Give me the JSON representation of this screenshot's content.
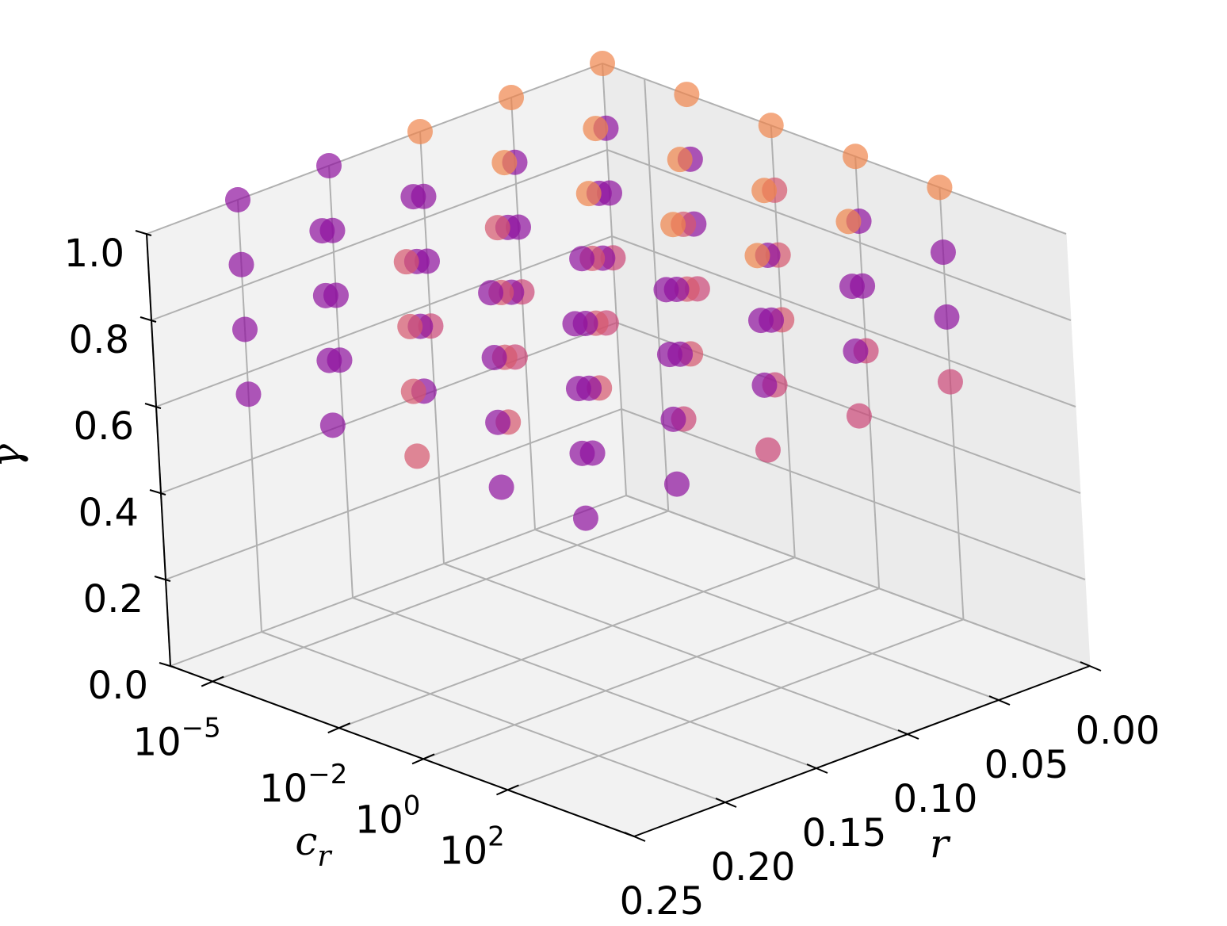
{
  "chart_data": {
    "type": "scatter3d",
    "xlabel": "c",
    "xlabel_sub": "r",
    "ylabel": "r",
    "zlabel": "γ",
    "xscale": "log",
    "colormap": "plasma",
    "alpha": 0.7,
    "xlim": [
      1e-06,
      100000
    ],
    "ylim": [
      0,
      0.25
    ],
    "zlim": [
      0,
      1
    ],
    "xticks": [
      {
        "value": 1e-05,
        "label": "10",
        "exponent": "−5"
      },
      {
        "value": 0.01,
        "label": "10",
        "exponent": "−2"
      },
      {
        "value": 1,
        "label": "10",
        "exponent": "0"
      },
      {
        "value": 100,
        "label": "10",
        "exponent": "2"
      }
    ],
    "yticks": [
      {
        "value": 0,
        "label": "0.00"
      },
      0.05,
      {
        "value": 0.1,
        "label": "0.10"
      },
      0.15,
      {
        "value": 0.2,
        "label": "0.20"
      },
      0.25
    ],
    "zticks": [
      {
        "value": 0,
        "label": "0.0"
      },
      0.2,
      0.4,
      0.6,
      0.8,
      {
        "value": 1,
        "label": "1.0"
      }
    ],
    "grid": true,
    "x": [
      1e-06,
      1e-06,
      1e-06,
      1e-06,
      1e-06,
      1e-06,
      1e-06,
      1e-06,
      1e-06,
      1e-06,
      1e-06,
      1e-06,
      1e-06,
      1e-06,
      1e-06,
      1e-06,
      1e-06,
      1e-06,
      1e-06,
      1e-06,
      0.0001,
      0.0001,
      0.0001,
      0.0001,
      0.0001,
      0.0001,
      0.0001,
      0.0001,
      0.0001,
      0.0001,
      0.0001,
      0.0001,
      0.0001,
      0.0001,
      0.0001,
      0.0001,
      0.0001,
      0.0001,
      0.0001,
      0.0001,
      0.01,
      0.01,
      0.01,
      0.01,
      0.01,
      0.01,
      0.01,
      0.01,
      0.01,
      0.01,
      0.01,
      0.01,
      0.01,
      0.01,
      0.01,
      0.01,
      0.01,
      0.01,
      0.01,
      0.01,
      1,
      1,
      1,
      1,
      1,
      1,
      1,
      1,
      1,
      1,
      1,
      1,
      1,
      1,
      1,
      1,
      1,
      1,
      1,
      1,
      100,
      100,
      100,
      100,
      100,
      100,
      100,
      100,
      100,
      100,
      100,
      100,
      100,
      100,
      100,
      100,
      100,
      100,
      100,
      100
    ],
    "y": [
      0,
      0,
      0,
      0,
      0.05,
      0.05,
      0.05,
      0.05,
      0.1,
      0.1,
      0.1,
      0.1,
      0.15,
      0.15,
      0.15,
      0.15,
      0.2,
      0.2,
      0.2,
      0.2,
      0,
      0,
      0,
      0,
      0.05,
      0.05,
      0.05,
      0.05,
      0.1,
      0.1,
      0.1,
      0.1,
      0.15,
      0.15,
      0.15,
      0.15,
      0.2,
      0.2,
      0.2,
      0.2,
      0,
      0,
      0,
      0,
      0.05,
      0.05,
      0.05,
      0.05,
      0.1,
      0.1,
      0.1,
      0.1,
      0.15,
      0.15,
      0.15,
      0.15,
      0.2,
      0.2,
      0.2,
      0.2,
      0,
      0,
      0,
      0,
      0.05,
      0.05,
      0.05,
      0.05,
      0.1,
      0.1,
      0.1,
      0.1,
      0.15,
      0.15,
      0.15,
      0.15,
      0.2,
      0.2,
      0.2,
      0.2,
      0,
      0,
      0,
      0,
      0.05,
      0.05,
      0.05,
      0.05,
      0.1,
      0.1,
      0.1,
      0.1,
      0.15,
      0.15,
      0.15,
      0.15,
      0.2,
      0.2,
      0.2,
      0.2
    ],
    "z": [
      0.55,
      0.7,
      0.85,
      1,
      0.55,
      0.7,
      0.85,
      1,
      0.55,
      0.7,
      0.85,
      1,
      0.55,
      0.7,
      0.85,
      1,
      0.55,
      0.7,
      0.85,
      1,
      0.55,
      0.7,
      0.85,
      1,
      0.55,
      0.7,
      0.85,
      1,
      0.55,
      0.7,
      0.85,
      1,
      0.55,
      0.7,
      0.85,
      1,
      0.55,
      0.7,
      0.85,
      1,
      0.55,
      0.7,
      0.85,
      1,
      0.55,
      0.7,
      0.85,
      1,
      0.55,
      0.7,
      0.85,
      1,
      0.55,
      0.7,
      0.85,
      1,
      0.55,
      0.7,
      0.85,
      1,
      0.55,
      0.7,
      0.85,
      1,
      0.55,
      0.7,
      0.85,
      1,
      0.55,
      0.7,
      0.85,
      1,
      0.55,
      0.7,
      0.85,
      1,
      0.55,
      0.7,
      0.85,
      1,
      0.55,
      0.7,
      0.85,
      1,
      0.55,
      0.7,
      0.85,
      1,
      0.55,
      0.7,
      0.85,
      1,
      0.55,
      0.7,
      0.85,
      1,
      0.55,
      0.7,
      0.85,
      1
    ],
    "color_values": [
      0.5,
      0.3,
      0.3,
      0.7,
      0.5,
      0.3,
      0.3,
      0.7,
      0.5,
      0.3,
      0.3,
      0.7,
      0.3,
      0.3,
      0.3,
      0.3,
      0.3,
      0.3,
      0.3,
      0.3,
      0.5,
      0.3,
      0.3,
      0.7,
      0.5,
      0.3,
      0.3,
      0.7,
      0.5,
      0.3,
      0.3,
      0.7,
      0.3,
      0.3,
      0.3,
      0.3,
      0.3,
      0.3,
      0.3,
      0.3,
      0.55,
      0.55,
      0.55,
      0.7,
      0.55,
      0.55,
      0.55,
      0.7,
      0.55,
      0.55,
      0.55,
      0.7,
      0.55,
      0.55,
      0.55,
      0.55,
      0.55,
      0.55,
      0.55,
      0.55,
      0.5,
      0.3,
      0.3,
      0.7,
      0.5,
      0.3,
      0.3,
      0.7,
      0.5,
      0.3,
      0.3,
      0.7,
      0.3,
      0.3,
      0.3,
      0.3,
      0.3,
      0.3,
      0.3,
      0.3,
      0.5,
      0.3,
      0.3,
      0.7,
      0.5,
      0.3,
      0.3,
      0.7,
      0.5,
      0.3,
      0.3,
      0.7,
      0.3,
      0.3,
      0.3,
      0.3,
      0.3,
      0.3,
      0.3,
      0.3
    ]
  }
}
